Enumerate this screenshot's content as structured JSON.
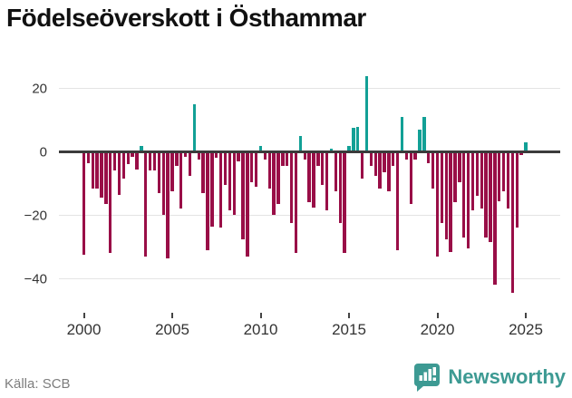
{
  "header": {
    "title": "Födelseöverskott i Östhammar"
  },
  "footer": {
    "source": "Källa: SCB",
    "brand": {
      "name": "Newsworthy",
      "icon": "bar-chart-badge-icon"
    }
  },
  "colors": {
    "positive_bar": "#12a096",
    "negative_bar": "#990e47",
    "zero_line": "#3b3b3b",
    "gridline": "#e4e4e4",
    "brand_teal": "#3d9a93"
  },
  "chart_data": {
    "type": "bar",
    "title": "Födelseöverskott i Östhammar",
    "unit": "quarter",
    "start_quarter": "2000 Q1",
    "end_quarter": "2025 Q1",
    "values": [
      -32,
      -3,
      -11,
      -11,
      -14,
      -16,
      -31.5,
      -5.5,
      -13,
      -8,
      -3.5,
      -1,
      -5,
      2,
      -32.5,
      -5.5,
      -5.5,
      -12.5,
      -19.5,
      -33,
      -12,
      -4,
      -17.5,
      -1,
      -7,
      15,
      -2,
      -12.5,
      -30.5,
      -23,
      -1.5,
      -23.5,
      -10,
      -18,
      -19.5,
      -2.5,
      -27,
      -32.5,
      -9,
      -10.5,
      2,
      -2,
      -11,
      -19.5,
      -16,
      -4,
      -4,
      -22,
      -31.5,
      5,
      -2,
      -15.5,
      -17,
      -4,
      -10,
      -18,
      1,
      -12,
      -22,
      -31.5,
      2,
      7.5,
      8,
      -8,
      24,
      -4,
      -7,
      -11,
      -6,
      -12,
      -4,
      -30.5,
      11,
      -2,
      -16,
      -2,
      7,
      11,
      -3,
      -11,
      -32.5,
      -22,
      -27,
      -31,
      -15.5,
      -9,
      -26.5,
      -30,
      -18,
      -13.5,
      -17.5,
      -26.5,
      -28,
      -41.5,
      -15,
      -12,
      -17.5,
      -44,
      -23.5,
      -0.5,
      3
    ],
    "yticks": [
      {
        "value": 20,
        "label": "20"
      },
      {
        "value": 0,
        "label": "0"
      },
      {
        "value": -20,
        "label": "−20"
      },
      {
        "value": -40,
        "label": "−40"
      }
    ],
    "xticks": [
      {
        "year": 2000,
        "label": "2000"
      },
      {
        "year": 2005,
        "label": "2005"
      },
      {
        "year": 2010,
        "label": "2010"
      },
      {
        "year": 2015,
        "label": "2015"
      },
      {
        "year": 2020,
        "label": "2020"
      },
      {
        "year": 2025,
        "label": "2025"
      }
    ],
    "ylim": [
      -47,
      26
    ],
    "grid": true,
    "legend": "none"
  }
}
